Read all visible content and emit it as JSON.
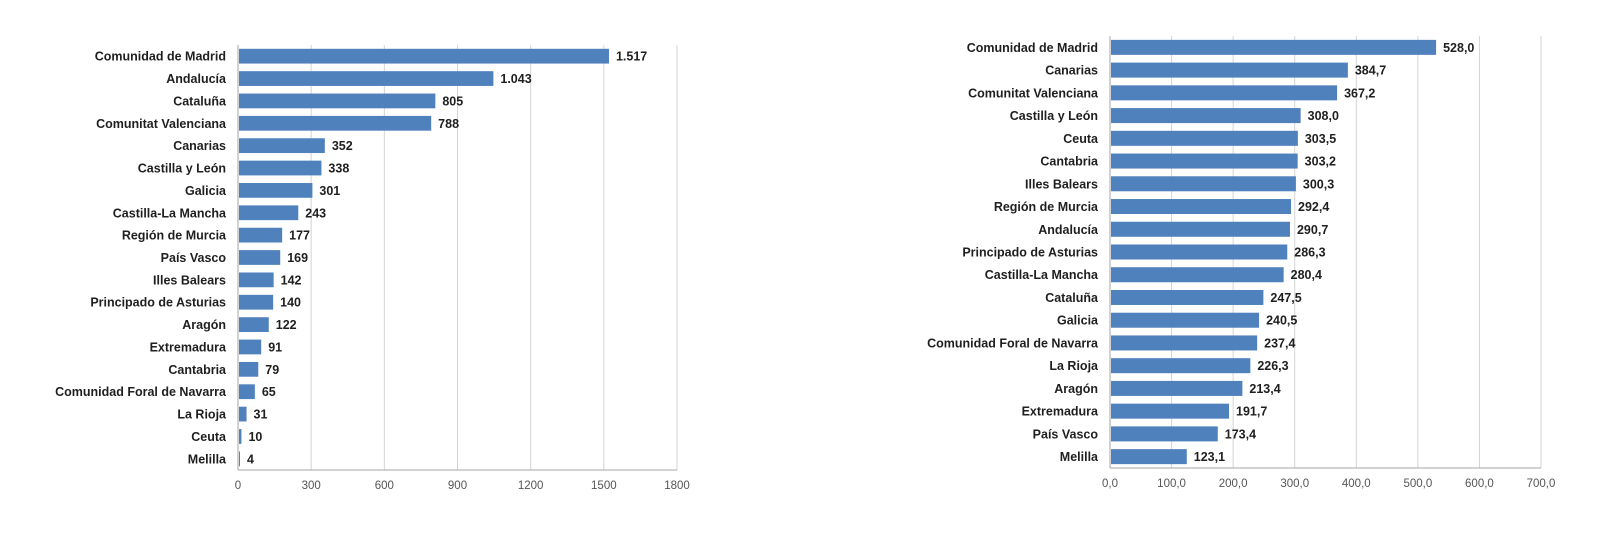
{
  "chart_data": [
    {
      "type": "bar",
      "orientation": "horizontal",
      "categories": [
        "Comunidad de Madrid",
        "Andalucía",
        "Cataluña",
        "Comunitat Valenciana",
        "Canarias",
        "Castilla y León",
        "Galicia",
        "Castilla-La Mancha",
        "Región de Murcia",
        "País Vasco",
        "Illes Balears",
        "Principado de Asturias",
        "Aragón",
        "Extremadura",
        "Cantabria",
        "Comunidad Foral de Navarra",
        "La Rioja",
        "Ceuta",
        "Melilla"
      ],
      "values": [
        1517,
        1043,
        805,
        788,
        352,
        338,
        301,
        243,
        177,
        169,
        142,
        140,
        122,
        91,
        79,
        65,
        31,
        10,
        4
      ],
      "value_labels": [
        "1.517",
        "1.043",
        "805",
        "788",
        "352",
        "338",
        "301",
        "243",
        "177",
        "169",
        "142",
        "140",
        "122",
        "91",
        "79",
        "65",
        "31",
        "10",
        "4"
      ],
      "xlim": [
        0,
        1800
      ],
      "xticks": [
        "0",
        "300",
        "600",
        "900",
        "1200",
        "1500",
        "1800"
      ],
      "grid": true,
      "color": "#4f81bd"
    },
    {
      "type": "bar",
      "orientation": "horizontal",
      "categories": [
        "Comunidad de Madrid",
        "Canarias",
        "Comunitat Valenciana",
        "Castilla y León",
        "Ceuta",
        "Cantabria",
        "Illes Balears",
        "Región de Murcia",
        "Andalucía",
        "Principado de Asturias",
        "Castilla-La Mancha",
        "Cataluña",
        "Galicia",
        "Comunidad Foral de Navarra",
        "La Rioja",
        "Aragón",
        "Extremadura",
        "País Vasco",
        "Melilla"
      ],
      "values": [
        528.0,
        384.7,
        367.2,
        308.0,
        303.5,
        303.2,
        300.3,
        292.4,
        290.7,
        286.3,
        280.4,
        247.5,
        240.5,
        237.4,
        226.3,
        213.4,
        191.7,
        173.4,
        123.1
      ],
      "value_labels": [
        "528,0",
        "384,7",
        "367,2",
        "308,0",
        "303,5",
        "303,2",
        "300,3",
        "292,4",
        "290,7",
        "286,3",
        "280,4",
        "247,5",
        "240,5",
        "237,4",
        "226,3",
        "213,4",
        "191,7",
        "173,4",
        "123,1"
      ],
      "xlim": [
        0,
        700
      ],
      "xticks": [
        "0,0",
        "100,0",
        "200,0",
        "300,0",
        "400,0",
        "500,0",
        "600,0",
        "700,0"
      ],
      "grid": true,
      "color": "#4f81bd"
    }
  ]
}
